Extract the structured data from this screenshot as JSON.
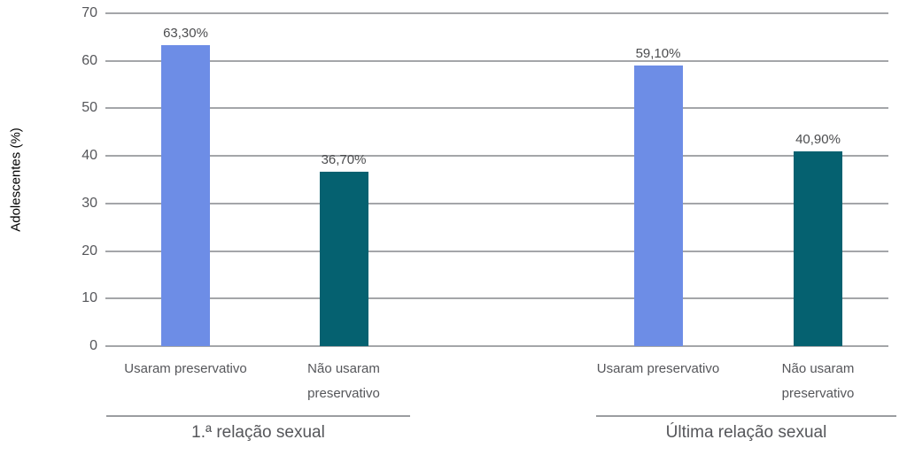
{
  "chart_data": {
    "type": "bar",
    "title": "",
    "xlabel": "",
    "ylabel": "Adolescentes (%)",
    "ylim": [
      0,
      70
    ],
    "yticks": [
      0,
      10,
      20,
      30,
      40,
      50,
      60,
      70
    ],
    "grid": "horizontal",
    "legend": "none",
    "groups": [
      {
        "label": "1.ª relação sexual",
        "bars": [
          {
            "category": "Usaram preservativo",
            "value": 63.3,
            "value_label": "63,30%",
            "color_key": "blue"
          },
          {
            "category": "Não usaram preservativo",
            "value": 36.7,
            "value_label": "36,70%",
            "color_key": "teal"
          }
        ]
      },
      {
        "label": "Última relação sexual",
        "bars": [
          {
            "category": "Usaram preservativo",
            "value": 59.1,
            "value_label": "59,10%",
            "color_key": "blue"
          },
          {
            "category": "Não usaram preservativo",
            "value": 40.9,
            "value_label": "40,90%",
            "color_key": "teal"
          }
        ]
      }
    ],
    "colors": {
      "blue": "#6d8de6",
      "teal": "#056170"
    },
    "gridline_color": "#a4a6a9",
    "underline_color": "#9b9da0",
    "text_color": "#55565a",
    "value_label_color": "#4c4d4f"
  }
}
